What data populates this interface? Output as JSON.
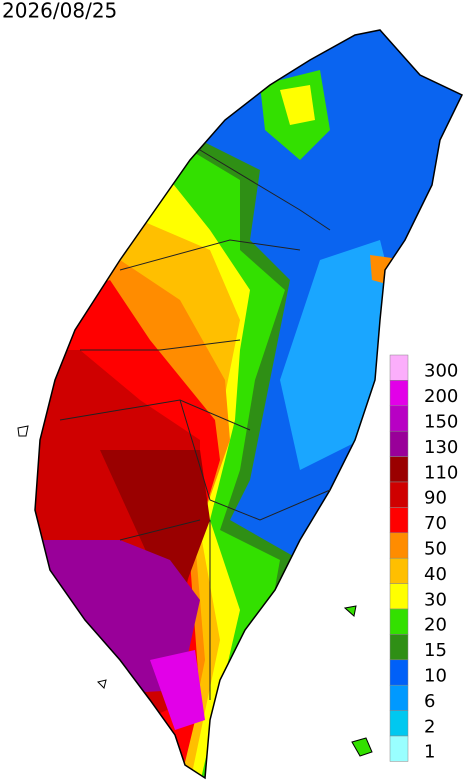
{
  "title": "2026/08/25",
  "legend": [
    {
      "label": 300,
      "color": "#fbaefb"
    },
    {
      "label": 200,
      "color": "#e200e8"
    },
    {
      "label": 150,
      "color": "#b800c4"
    },
    {
      "label": 130,
      "color": "#990099"
    },
    {
      "label": 110,
      "color": "#9a0000"
    },
    {
      "label": 90,
      "color": "#cf0000"
    },
    {
      "label": 70,
      "color": "#ff0000"
    },
    {
      "label": 50,
      "color": "#ff8c00"
    },
    {
      "label": 40,
      "color": "#ffbf00"
    },
    {
      "label": 30,
      "color": "#ffff00"
    },
    {
      "label": 20,
      "color": "#33e000"
    },
    {
      "label": 15,
      "color": "#2f8f15"
    },
    {
      "label": 10,
      "color": "#0060f8"
    },
    {
      "label": 6,
      "color": "#0099ff"
    },
    {
      "label": 2,
      "color": "#00c8f0"
    },
    {
      "label": 1,
      "color": "#99ffff"
    }
  ]
}
